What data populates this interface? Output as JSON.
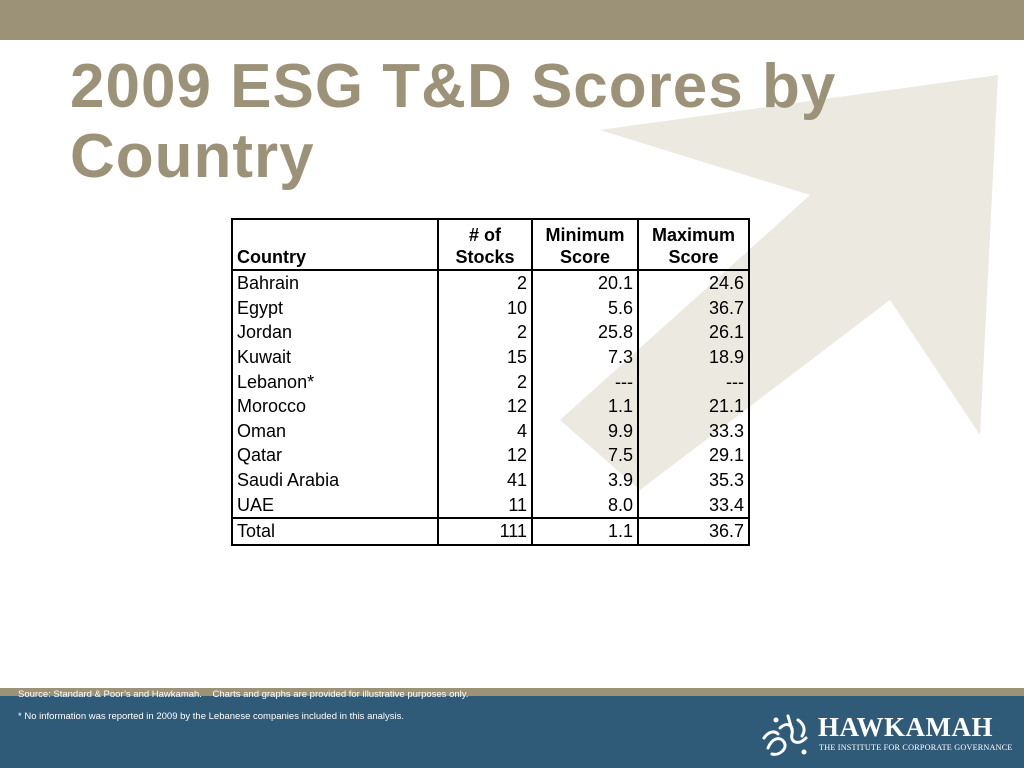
{
  "title": "2009 ESG T&D Scores by Country",
  "table": {
    "headers": [
      "Country",
      "# of\nStocks",
      "Minimum\nScore",
      "Maximum\nScore"
    ],
    "rows": [
      [
        "Bahrain",
        "2",
        "20.1",
        "24.6"
      ],
      [
        "Egypt",
        "10",
        "5.6",
        "36.7"
      ],
      [
        "Jordan",
        "2",
        "25.8",
        "26.1"
      ],
      [
        "Kuwait",
        "15",
        "7.3",
        "18.9"
      ],
      [
        "Lebanon*",
        "2",
        "---",
        "---"
      ],
      [
        "Morocco",
        "12",
        "1.1",
        "21.1"
      ],
      [
        "Oman",
        "4",
        "9.9",
        "33.3"
      ],
      [
        "Qatar",
        "12",
        "7.5",
        "29.1"
      ],
      [
        "Saudi Arabia",
        "41",
        "3.9",
        "35.3"
      ],
      [
        "UAE",
        "11",
        "8.0",
        "33.4"
      ]
    ],
    "total": [
      "Total",
      "111",
      "1.1",
      "36.7"
    ]
  },
  "footer": {
    "source": "Source: Standard & Poor’s and Hawkamah.    Charts and graphs are provided for illustrative purposes only.",
    "note": "* No information was reported in 2009 by the Lebanese companies included in this analysis.",
    "logo_name": "HAWKAMAH",
    "logo_tagline": "THE INSTITUTE FOR CORPORATE GOVERNANCE"
  },
  "colors": {
    "accent": "#9b9278",
    "footer_bg": "#2f5a78",
    "watermark": "#ece9e1"
  },
  "icons": {
    "background": "arrow-watermark-icon",
    "logo": "hawkamah-calligraphy-icon"
  }
}
